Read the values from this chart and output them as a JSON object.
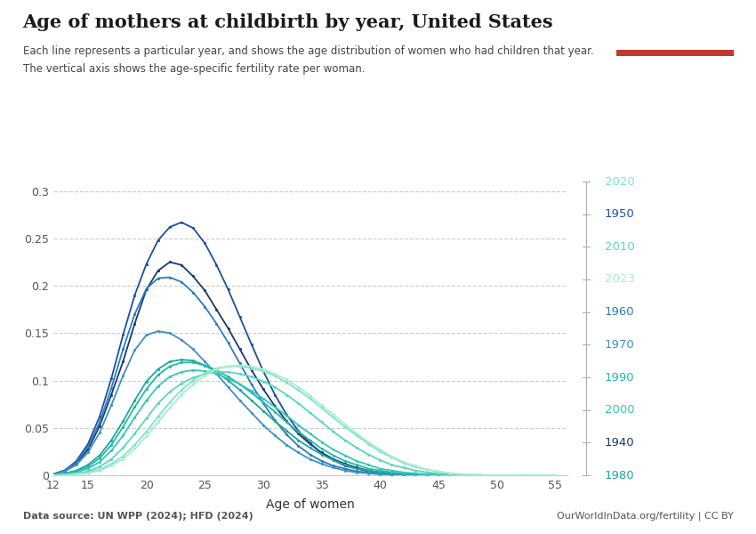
{
  "title": "Age of mothers at childbirth by year, United States",
  "subtitle_line1": "Each line represents a particular year, and shows the age distribution of women who had children that year.",
  "subtitle_line2": "The vertical axis shows the age-specific fertility rate per woman.",
  "xlabel": "Age of women",
  "datasource": "Data source: UN WPP (2024); HFD (2024)",
  "credit": "OurWorldInData.org/fertility | CC BY",
  "ages": [
    12,
    13,
    14,
    15,
    16,
    17,
    18,
    19,
    20,
    21,
    22,
    23,
    24,
    25,
    26,
    27,
    28,
    29,
    30,
    31,
    32,
    33,
    34,
    35,
    36,
    37,
    38,
    39,
    40,
    41,
    42,
    43,
    44,
    45,
    46,
    47,
    48,
    49,
    50,
    51,
    52,
    53,
    54,
    55
  ],
  "series": [
    {
      "year": 1940,
      "color": "#1a3a6b",
      "values": [
        0.001,
        0.005,
        0.013,
        0.027,
        0.052,
        0.085,
        0.12,
        0.16,
        0.196,
        0.216,
        0.225,
        0.222,
        0.21,
        0.195,
        0.175,
        0.155,
        0.133,
        0.111,
        0.091,
        0.073,
        0.057,
        0.044,
        0.033,
        0.024,
        0.017,
        0.012,
        0.008,
        0.005,
        0.003,
        0.002,
        0.001,
        0.001,
        0.0,
        0.0,
        0.0,
        0.0,
        0.0,
        0.0,
        0.0,
        0.0,
        0.0,
        0.0,
        0.0,
        0.0
      ]
    },
    {
      "year": 1950,
      "color": "#1e4fa0",
      "values": [
        0.001,
        0.005,
        0.015,
        0.033,
        0.062,
        0.102,
        0.148,
        0.19,
        0.223,
        0.248,
        0.262,
        0.267,
        0.261,
        0.245,
        0.222,
        0.196,
        0.167,
        0.138,
        0.11,
        0.085,
        0.064,
        0.047,
        0.034,
        0.023,
        0.016,
        0.01,
        0.007,
        0.004,
        0.002,
        0.001,
        0.001,
        0.0,
        0.0,
        0.0,
        0.0,
        0.0,
        0.0,
        0.0,
        0.0,
        0.0,
        0.0,
        0.0,
        0.0,
        0.0
      ]
    },
    {
      "year": 1960,
      "color": "#2e7bbf",
      "values": [
        0.001,
        0.005,
        0.014,
        0.03,
        0.056,
        0.092,
        0.133,
        0.17,
        0.197,
        0.208,
        0.209,
        0.204,
        0.193,
        0.178,
        0.16,
        0.14,
        0.118,
        0.096,
        0.076,
        0.058,
        0.043,
        0.031,
        0.022,
        0.015,
        0.01,
        0.007,
        0.004,
        0.003,
        0.002,
        0.001,
        0.001,
        0.0,
        0.0,
        0.0,
        0.0,
        0.0,
        0.0,
        0.0,
        0.0,
        0.0,
        0.0,
        0.0,
        0.0,
        0.0
      ]
    },
    {
      "year": 1970,
      "color": "#4090c0",
      "values": [
        0.001,
        0.004,
        0.011,
        0.024,
        0.045,
        0.074,
        0.105,
        0.132,
        0.148,
        0.152,
        0.15,
        0.143,
        0.133,
        0.12,
        0.107,
        0.093,
        0.079,
        0.066,
        0.053,
        0.042,
        0.032,
        0.024,
        0.017,
        0.012,
        0.008,
        0.005,
        0.003,
        0.002,
        0.001,
        0.001,
        0.0,
        0.0,
        0.0,
        0.0,
        0.0,
        0.0,
        0.0,
        0.0,
        0.0,
        0.0,
        0.0,
        0.0,
        0.0,
        0.0
      ]
    },
    {
      "year": 1980,
      "color": "#1da899",
      "values": [
        0.0,
        0.002,
        0.005,
        0.011,
        0.021,
        0.037,
        0.057,
        0.079,
        0.099,
        0.112,
        0.12,
        0.122,
        0.121,
        0.116,
        0.109,
        0.1,
        0.09,
        0.079,
        0.068,
        0.057,
        0.047,
        0.037,
        0.029,
        0.022,
        0.016,
        0.011,
        0.007,
        0.005,
        0.003,
        0.002,
        0.001,
        0.001,
        0.0,
        0.0,
        0.0,
        0.0,
        0.0,
        0.0,
        0.0,
        0.0,
        0.0,
        0.0,
        0.0,
        0.0
      ]
    },
    {
      "year": 1990,
      "color": "#25b8a8",
      "values": [
        0.0,
        0.001,
        0.004,
        0.009,
        0.018,
        0.032,
        0.051,
        0.072,
        0.091,
        0.106,
        0.115,
        0.119,
        0.119,
        0.116,
        0.111,
        0.104,
        0.096,
        0.087,
        0.077,
        0.067,
        0.056,
        0.046,
        0.037,
        0.028,
        0.021,
        0.015,
        0.011,
        0.007,
        0.005,
        0.003,
        0.002,
        0.001,
        0.001,
        0.0,
        0.0,
        0.0,
        0.0,
        0.0,
        0.0,
        0.0,
        0.0,
        0.0,
        0.0,
        0.0
      ]
    },
    {
      "year": 2000,
      "color": "#33c8b8",
      "values": [
        0.0,
        0.001,
        0.003,
        0.007,
        0.014,
        0.026,
        0.042,
        0.061,
        0.079,
        0.094,
        0.104,
        0.109,
        0.111,
        0.11,
        0.107,
        0.102,
        0.096,
        0.089,
        0.081,
        0.072,
        0.063,
        0.053,
        0.044,
        0.035,
        0.027,
        0.021,
        0.015,
        0.011,
        0.007,
        0.005,
        0.003,
        0.002,
        0.001,
        0.001,
        0.0,
        0.0,
        0.0,
        0.0,
        0.0,
        0.0,
        0.0,
        0.0,
        0.0,
        0.0
      ]
    },
    {
      "year": 2010,
      "color": "#5dd5c0",
      "values": [
        0.0,
        0.001,
        0.002,
        0.004,
        0.009,
        0.017,
        0.029,
        0.044,
        0.06,
        0.076,
        0.088,
        0.097,
        0.103,
        0.107,
        0.109,
        0.109,
        0.107,
        0.104,
        0.099,
        0.093,
        0.085,
        0.076,
        0.066,
        0.056,
        0.046,
        0.037,
        0.029,
        0.022,
        0.016,
        0.011,
        0.008,
        0.005,
        0.003,
        0.002,
        0.001,
        0.001,
        0.0,
        0.0,
        0.0,
        0.0,
        0.0,
        0.0,
        0.0,
        0.0
      ]
    },
    {
      "year": 2020,
      "color": "#7ee5ca",
      "values": [
        0.0,
        0.0,
        0.001,
        0.003,
        0.006,
        0.012,
        0.02,
        0.032,
        0.046,
        0.062,
        0.077,
        0.09,
        0.1,
        0.108,
        0.113,
        0.115,
        0.115,
        0.113,
        0.11,
        0.105,
        0.098,
        0.09,
        0.081,
        0.071,
        0.061,
        0.051,
        0.042,
        0.033,
        0.025,
        0.019,
        0.013,
        0.009,
        0.006,
        0.004,
        0.002,
        0.001,
        0.001,
        0.0,
        0.0,
        0.0,
        0.0,
        0.0,
        0.0,
        0.0
      ]
    },
    {
      "year": 2023,
      "color": "#a8edcf",
      "values": [
        0.0,
        0.0,
        0.001,
        0.002,
        0.005,
        0.01,
        0.017,
        0.028,
        0.041,
        0.056,
        0.071,
        0.085,
        0.096,
        0.105,
        0.112,
        0.115,
        0.116,
        0.115,
        0.112,
        0.107,
        0.101,
        0.093,
        0.084,
        0.074,
        0.064,
        0.054,
        0.044,
        0.035,
        0.027,
        0.02,
        0.014,
        0.01,
        0.006,
        0.004,
        0.002,
        0.001,
        0.001,
        0.0,
        0.0,
        0.0,
        0.0,
        0.0,
        0.0,
        0.0
      ]
    }
  ],
  "ylim": [
    0,
    0.31
  ],
  "xlim": [
    12,
    56
  ],
  "yticks": [
    0,
    0.05,
    0.1,
    0.15,
    0.2,
    0.25,
    0.3
  ],
  "xtick_vals": [
    12,
    15,
    20,
    25,
    30,
    35,
    40,
    45,
    50,
    55
  ],
  "xtick_labels": [
    "12",
    "15",
    "20",
    "25",
    "30",
    "35",
    "40",
    "45",
    "50",
    "55"
  ],
  "background_color": "#ffffff",
  "grid_color": "#cccccc",
  "legend_years": [
    2020,
    1950,
    2010,
    2023,
    1960,
    1970,
    1990,
    2000,
    1940,
    1980
  ],
  "owid_box_color": "#1a3561",
  "owid_accent_color": "#c0392b"
}
